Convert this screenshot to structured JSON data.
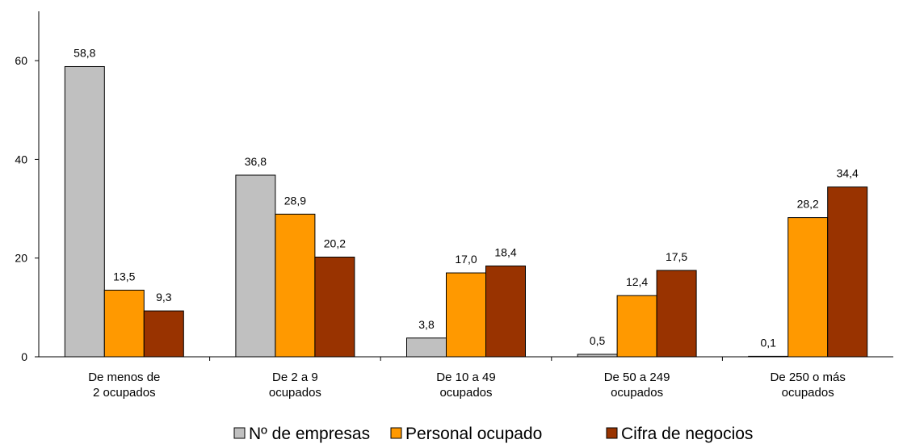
{
  "chart_data": {
    "type": "bar",
    "categories": [
      [
        "De menos de",
        "2 ocupados"
      ],
      [
        "De 2 a 9",
        "ocupados"
      ],
      [
        "De 10 a 49",
        "ocupados"
      ],
      [
        "De 50 a 249",
        "ocupados"
      ],
      [
        "De 250 o más",
        "ocupados"
      ]
    ],
    "series": [
      {
        "name": "Nº de empresas",
        "color": "#c0c0c0",
        "values": [
          58.8,
          36.8,
          3.8,
          0.5,
          0.1
        ],
        "labels": [
          "58,8",
          "36,8",
          "3,8",
          "0,5",
          "0,1"
        ]
      },
      {
        "name": "Personal ocupado",
        "color": "#ff9900",
        "values": [
          13.5,
          28.9,
          17.0,
          12.4,
          28.2
        ],
        "labels": [
          "13,5",
          "28,9",
          "17,0",
          "12,4",
          "28,2"
        ]
      },
      {
        "name": "Cifra de negocios",
        "color": "#993300",
        "values": [
          9.3,
          20.2,
          18.4,
          17.5,
          34.4
        ],
        "labels": [
          "9,3",
          "20,2",
          "18,4",
          "17,5",
          "34,4"
        ]
      }
    ],
    "ylim": [
      0,
      70
    ],
    "yticks": [
      0,
      20,
      40,
      60
    ],
    "ytick_labels": [
      "0",
      "20",
      "40",
      "60"
    ],
    "grid": false,
    "legend_position": "bottom",
    "title": "",
    "xlabel": "",
    "ylabel": ""
  }
}
